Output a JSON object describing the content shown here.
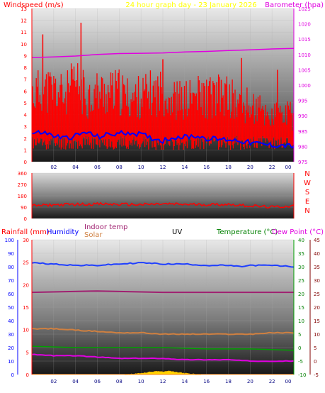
{
  "header": {
    "title": "24 hour graph day - 23 January 2026",
    "left_label": "Windspeed (m/s)",
    "right_label": "Barometer (hpa)"
  },
  "compass": {
    "letters": [
      "N",
      "W",
      "S",
      "E",
      "N"
    ]
  },
  "bottom_header": {
    "rainfall": "Rainfall (mm)",
    "humidity": "Humidity",
    "indoor": "Indoor temp",
    "solar": "Solar",
    "uv": "UV",
    "temperature": "Temperature (°C)",
    "dewpoint": "Dew Point (°C)"
  },
  "colors": {
    "wind": "#ff0000",
    "wind_avg": "#0000ff",
    "barometer": "#e000e0",
    "direction": "#ff0000",
    "humidity": "#2040ff",
    "indoor": "#a02070",
    "solar_line": "#d08040",
    "dewpoint": "#e000e0",
    "temperature": "#00a000",
    "solar_fill": "#ffd000",
    "uv_fill": "#ff8000"
  },
  "chart_data": [
    {
      "type": "line",
      "title": "24 hour graph day - 23 January 2026",
      "x_ticks": [
        "02",
        "04",
        "06",
        "08",
        "10",
        "12",
        "14",
        "16",
        "18",
        "20",
        "22",
        "00"
      ],
      "x_hours": [
        0,
        24
      ],
      "y_left": {
        "label": "Windspeed (m/s)",
        "range": [
          0,
          13
        ],
        "ticks": [
          0,
          1,
          2,
          3,
          4,
          5,
          6,
          7,
          8,
          9,
          10,
          11,
          12,
          13
        ]
      },
      "y_right": {
        "label": "Barometer (hpa)",
        "range": [
          975,
          1025
        ],
        "ticks": [
          975,
          980,
          985,
          990,
          995,
          1000,
          1005,
          1010,
          1015,
          1020,
          1025
        ]
      },
      "series": [
        {
          "name": "Windspeed (m/s)",
          "axis": "left",
          "hours": [
            0,
            1,
            2,
            3,
            4,
            5,
            6,
            7,
            8,
            9,
            10,
            11,
            12,
            13,
            14,
            15,
            16,
            17,
            18,
            19,
            20,
            21,
            22,
            23,
            24
          ],
          "values": [
            6.8,
            7.0,
            7.2,
            6.5,
            7.8,
            6.5,
            6.9,
            6.8,
            6.9,
            6.2,
            6.5,
            6.8,
            6.9,
            6.2,
            6.0,
            6.5,
            6.4,
            6.5,
            6.5,
            5.5,
            5.5,
            5.0,
            4.5,
            4.5,
            4.5
          ],
          "gusts": [
            [
              1.0,
              10.8
            ],
            [
              4.5,
              11.8
            ],
            [
              12.0,
              8.7
            ],
            [
              19.2,
              8.8
            ],
            [
              22.5,
              7.8
            ]
          ]
        },
        {
          "name": "Wind average",
          "axis": "left",
          "hours": [
            0,
            1,
            2,
            3,
            4,
            5,
            6,
            7,
            8,
            9,
            10,
            11,
            12,
            13,
            14,
            15,
            16,
            17,
            18,
            19,
            20,
            21,
            22,
            23,
            24
          ],
          "values": [
            2.4,
            2.5,
            2.2,
            2.0,
            2.2,
            2.5,
            2.1,
            2.3,
            2.4,
            2.5,
            2.3,
            2.0,
            1.8,
            2.1,
            2.1,
            2.2,
            2.0,
            1.9,
            1.9,
            1.8,
            1.6,
            1.5,
            1.4,
            1.4,
            1.3
          ]
        },
        {
          "name": "Barometer (hpa)",
          "axis": "right",
          "hours": [
            0,
            2,
            4,
            6,
            8,
            10,
            12,
            14,
            16,
            18,
            20,
            22,
            24
          ],
          "values": [
            1009.0,
            1009.2,
            1009.5,
            1010.0,
            1010.3,
            1010.4,
            1010.5,
            1010.8,
            1011.0,
            1011.3,
            1011.5,
            1011.8,
            1012.0
          ]
        }
      ]
    },
    {
      "type": "line",
      "x_hours": [
        0,
        24
      ],
      "y": {
        "range": [
          0,
          360
        ],
        "ticks": [
          0,
          90,
          180,
          270,
          360
        ]
      },
      "series": [
        {
          "name": "Wind direction",
          "hours": [
            0,
            2,
            4,
            6,
            8,
            10,
            12,
            14,
            16,
            18,
            20,
            22,
            24
          ],
          "values": [
            100,
            108,
            112,
            115,
            112,
            110,
            115,
            112,
            110,
            112,
            100,
            90,
            100
          ]
        }
      ]
    },
    {
      "type": "line",
      "x_ticks": [
        "02",
        "04",
        "06",
        "08",
        "10",
        "12",
        "14",
        "16",
        "18",
        "20",
        "22",
        "00"
      ],
      "x_hours": [
        0,
        24
      ],
      "axes": {
        "humidity": {
          "label": "Humidity",
          "range": [
            0,
            100
          ],
          "ticks": [
            0,
            10,
            20,
            30,
            40,
            50,
            60,
            70,
            80,
            90,
            100
          ]
        },
        "rainfall": {
          "label": "Rainfall (mm)",
          "range": [
            0,
            30
          ],
          "ticks": [
            0,
            5,
            10,
            15,
            20,
            25,
            30
          ]
        },
        "temperature": {
          "label": "Temperature (°C)",
          "range": [
            -10,
            40
          ],
          "ticks": [
            -10,
            -5,
            0,
            5,
            10,
            15,
            20,
            25,
            30,
            35,
            40
          ]
        },
        "dewpoint": {
          "label": "Dew Point (°C)",
          "range": [
            -5,
            45
          ],
          "ticks": [
            -5,
            0,
            5,
            10,
            15,
            20,
            25,
            30,
            35,
            40,
            45
          ]
        }
      },
      "series": [
        {
          "name": "Humidity",
          "axis": "humidity",
          "hours": [
            0,
            2,
            4,
            6,
            8,
            10,
            12,
            14,
            16,
            18,
            19,
            20,
            22,
            24
          ],
          "values": [
            83,
            82,
            81,
            81,
            82,
            83,
            82,
            82,
            81,
            81,
            80,
            81,
            81,
            80
          ]
        },
        {
          "name": "Indoor temp",
          "axis": "humidity",
          "hours": [
            0,
            6,
            12,
            18,
            24
          ],
          "values": [
            61,
            62,
            61,
            61,
            61
          ]
        },
        {
          "name": "Solar",
          "axis": "humidity",
          "hours": [
            0,
            2,
            4,
            6,
            8,
            10,
            12,
            14,
            16,
            18,
            20,
            22,
            24
          ],
          "values": [
            34,
            34,
            33,
            32,
            31,
            31,
            30,
            30,
            30,
            30,
            30,
            31,
            31
          ]
        },
        {
          "name": "Temperature (°C)",
          "axis": "humidity",
          "hours": [
            0,
            4,
            8,
            12,
            16,
            20,
            24
          ],
          "values": [
            21,
            20,
            20,
            20,
            19,
            19,
            18
          ]
        },
        {
          "name": "Dew Point (°C)",
          "axis": "humidity",
          "hours": [
            0,
            2,
            4,
            6,
            8,
            10,
            12,
            14,
            16,
            18,
            20,
            22,
            24
          ],
          "values": [
            15,
            14,
            14,
            13,
            12,
            12,
            12,
            11,
            11,
            11,
            10,
            10,
            10
          ]
        },
        {
          "name": "Solar radiation",
          "axis": "humidity",
          "hours": [
            8.5,
            9.5,
            10.5,
            11,
            11.5,
            12,
            12.5,
            13,
            13.5,
            14.5,
            15.5
          ],
          "values": [
            0,
            0.5,
            1.5,
            2.0,
            2.5,
            2.0,
            2.5,
            2.0,
            1.5,
            0.5,
            0
          ]
        },
        {
          "name": "UV",
          "axis": "humidity",
          "hours": [
            0,
            24
          ],
          "values": [
            0.4,
            0.4
          ]
        }
      ]
    }
  ]
}
